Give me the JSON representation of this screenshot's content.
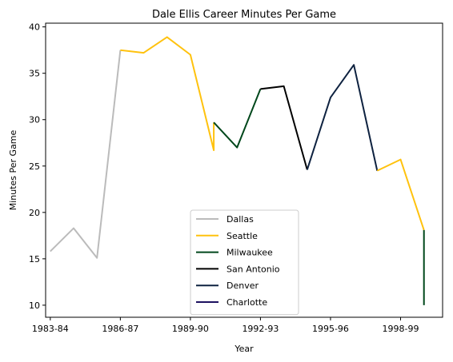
{
  "chart_data": {
    "type": "line",
    "title": "Dale Ellis Career Minutes Per Game",
    "xlabel": "Year",
    "ylabel": "Minutes Per Game",
    "x_ticks": [
      "1983-84",
      "1986-87",
      "1989-90",
      "1992-93",
      "1995-96",
      "1998-99"
    ],
    "y_ticks": [
      10,
      15,
      20,
      25,
      30,
      35,
      40
    ],
    "xlim": [
      1983.4,
      2000.4
    ],
    "ylim": [
      8.7,
      40.4
    ],
    "grid": false,
    "legend_position": "lower-center",
    "series": [
      {
        "name": "Dallas",
        "color": "#bbbbbb",
        "points": [
          [
            1983.6,
            15.8
          ],
          [
            1984.6,
            18.3
          ],
          [
            1985.6,
            15.1
          ],
          [
            1986.6,
            37.5
          ]
        ]
      },
      {
        "name": "Seattle",
        "color": "#ffc20e",
        "points": [
          [
            1986.6,
            37.5
          ],
          [
            1987.6,
            37.2
          ],
          [
            1988.6,
            38.9
          ],
          [
            1989.6,
            37.0
          ],
          [
            1990.6,
            26.7
          ],
          [
            1990.6,
            29.7
          ]
        ]
      },
      {
        "name": "Milwaukee",
        "color": "#00471b",
        "points": [
          [
            1990.6,
            29.7
          ],
          [
            1991.6,
            27.0
          ],
          [
            1992.6,
            33.3
          ]
        ]
      },
      {
        "name": "San Antonio",
        "color": "#000000",
        "points": [
          [
            1992.6,
            33.3
          ],
          [
            1993.6,
            33.6
          ],
          [
            1994.6,
            24.6
          ]
        ]
      },
      {
        "name": "Denver",
        "color": "#0e2240",
        "points": [
          [
            1994.6,
            24.6
          ],
          [
            1995.6,
            32.4
          ],
          [
            1996.6,
            35.9
          ],
          [
            1997.6,
            24.5
          ]
        ]
      },
      {
        "name": "Charlotte",
        "color": "#1d1160",
        "points": []
      },
      {
        "name": "Seattle",
        "color": "#ffc20e",
        "legend": false,
        "points": [
          [
            1997.6,
            24.5
          ],
          [
            1998.6,
            25.7
          ],
          [
            1999.6,
            18.1
          ]
        ]
      },
      {
        "name": "Milwaukee",
        "color": "#00471b",
        "legend": false,
        "points": [
          [
            1999.6,
            18.1
          ],
          [
            1999.6,
            10.0
          ]
        ]
      }
    ]
  }
}
